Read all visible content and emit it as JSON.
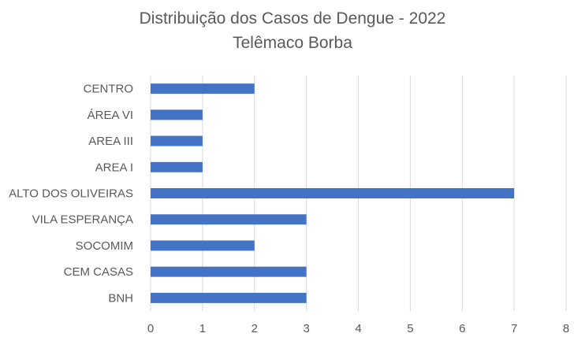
{
  "chart_data": {
    "type": "bar",
    "orientation": "horizontal",
    "title": "Distribuição dos Casos de Dengue - 2022",
    "subtitle": "Telêmaco Borba",
    "categories": [
      "CENTRO",
      "ÁREA VI",
      "AREA III",
      "AREA I",
      "ALTO DOS OLIVEIRAS",
      "VILA ESPERANÇA",
      "SOCOMIM",
      "CEM CASAS",
      "BNH"
    ],
    "values": [
      2,
      1,
      1,
      1,
      7,
      3,
      2,
      3,
      3
    ],
    "xlim": [
      0,
      8
    ],
    "xticks": [
      "0",
      "1",
      "2",
      "3",
      "4",
      "5",
      "6",
      "7",
      "8"
    ],
    "xlabel": "",
    "ylabel": "",
    "grid": "vertical",
    "legend": "none",
    "colors": {
      "bar": "#4472C4",
      "grid": "#D9D9D9",
      "text": "#595959"
    }
  }
}
